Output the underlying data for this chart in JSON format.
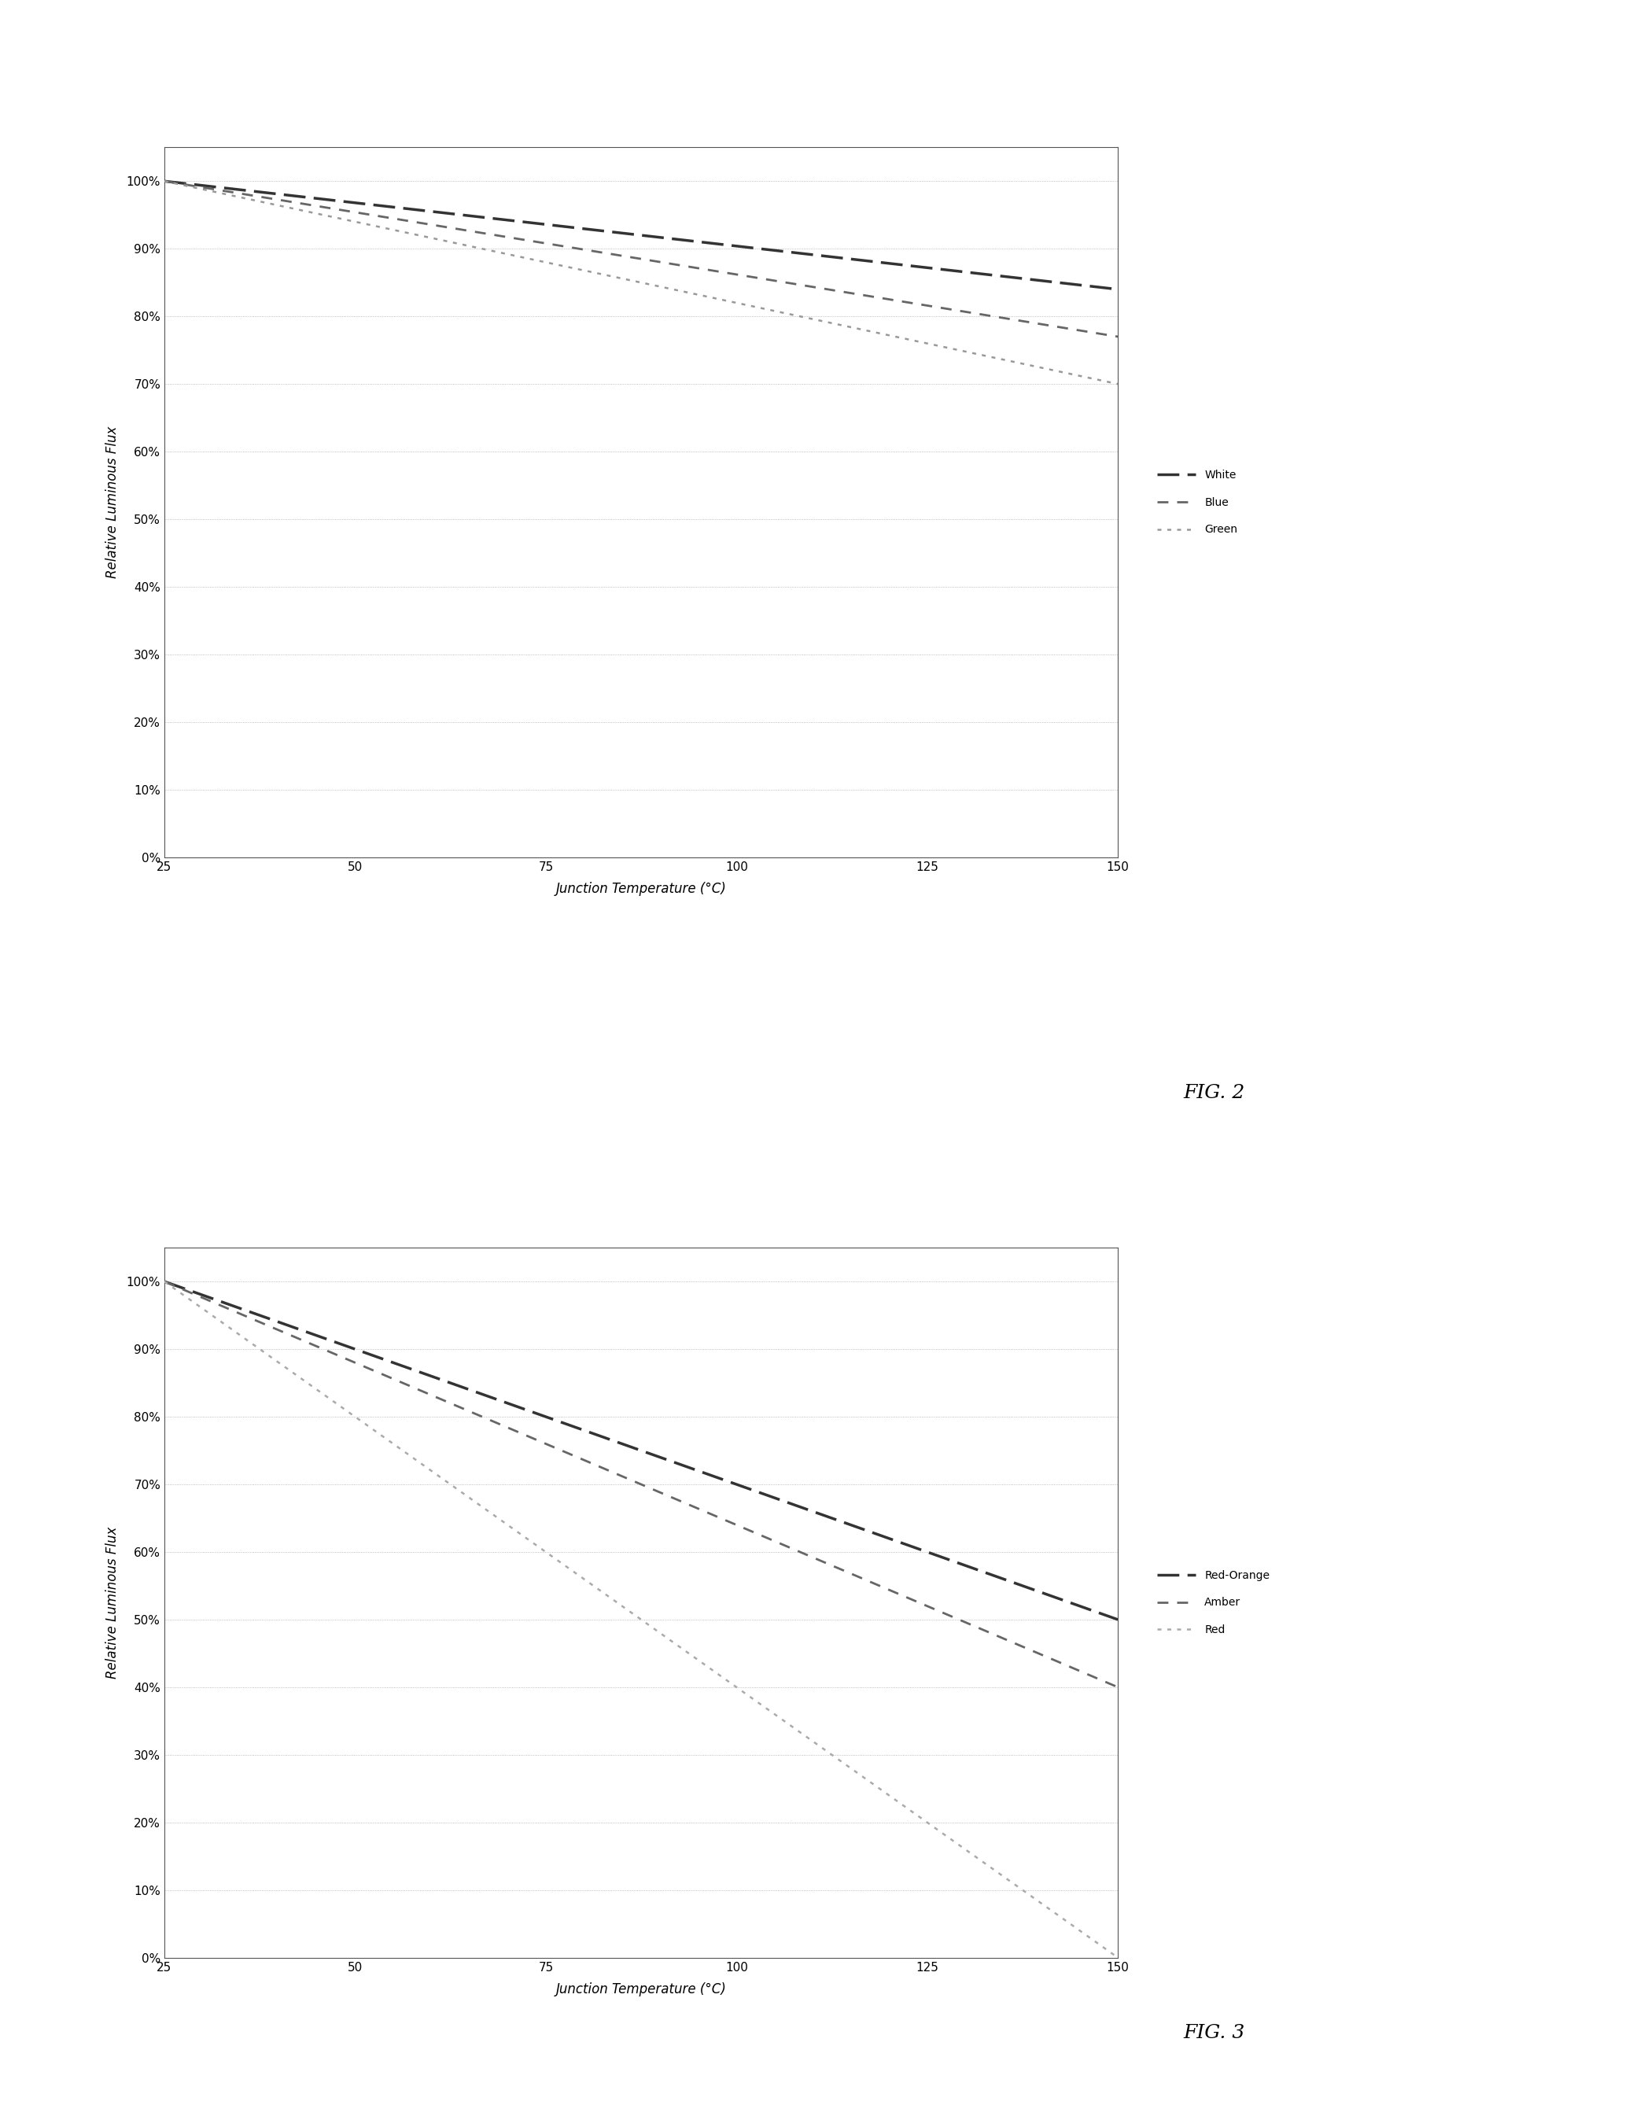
{
  "fig2": {
    "xlabel": "Junction Temperature (°C)",
    "ylabel": "Relative Luminous Flux",
    "xlim": [
      25,
      150
    ],
    "ylim": [
      0,
      1.05
    ],
    "xticks": [
      25,
      50,
      75,
      100,
      125,
      150
    ],
    "ytick_vals": [
      0.0,
      0.1,
      0.2,
      0.3,
      0.4,
      0.5,
      0.6,
      0.7,
      0.8,
      0.9,
      1.0
    ],
    "ytick_labels": [
      "0%",
      "10%",
      "20%",
      "30%",
      "40%",
      "50%",
      "60%",
      "70%",
      "80%",
      "90%",
      "100%"
    ],
    "series": [
      {
        "label": "White",
        "x": [
          25,
          150
        ],
        "y": [
          1.0,
          0.84
        ],
        "color": "#333333",
        "linestyle": "dashed_heavy",
        "linewidth": 2.5
      },
      {
        "label": "Blue",
        "x": [
          25,
          150
        ],
        "y": [
          1.0,
          0.77
        ],
        "color": "#666666",
        "linestyle": "dashed_medium",
        "linewidth": 2.0
      },
      {
        "label": "Green",
        "x": [
          25,
          150
        ],
        "y": [
          1.0,
          0.7
        ],
        "color": "#999999",
        "linestyle": "dotted",
        "linewidth": 1.8
      }
    ],
    "fig_label": "FIG. 2"
  },
  "fig3": {
    "xlabel": "Junction Temperature (°C)",
    "ylabel": "Relative Luminous Flux",
    "xlim": [
      25,
      150
    ],
    "ylim": [
      0,
      1.05
    ],
    "xticks": [
      25,
      50,
      75,
      100,
      125,
      150
    ],
    "ytick_vals": [
      0.0,
      0.1,
      0.2,
      0.3,
      0.4,
      0.5,
      0.6,
      0.7,
      0.8,
      0.9,
      1.0
    ],
    "ytick_labels": [
      "0%",
      "10%",
      "20%",
      "30%",
      "40%",
      "50%",
      "60%",
      "70%",
      "80%",
      "90%",
      "100%"
    ],
    "series": [
      {
        "label": "Red-Orange",
        "x": [
          25,
          150
        ],
        "y": [
          1.0,
          0.5
        ],
        "color": "#333333",
        "linestyle": "dashed_heavy",
        "linewidth": 2.5
      },
      {
        "label": "Amber",
        "x": [
          25,
          150
        ],
        "y": [
          1.0,
          0.4
        ],
        "color": "#666666",
        "linestyle": "dashed_medium",
        "linewidth": 2.0
      },
      {
        "label": "Red",
        "x": [
          25,
          150
        ],
        "y": [
          1.0,
          0.0
        ],
        "color": "#aaaaaa",
        "linestyle": "dotted",
        "linewidth": 1.8
      }
    ],
    "fig_label": "FIG. 3"
  },
  "background_color": "#ffffff",
  "grid_color": "#aaaaaa",
  "grid_linewidth": 0.6,
  "axis_linewidth": 0.8,
  "tick_fontsize": 11,
  "label_fontsize": 12,
  "legend_fontsize": 10,
  "fig_label_fontsize": 18
}
